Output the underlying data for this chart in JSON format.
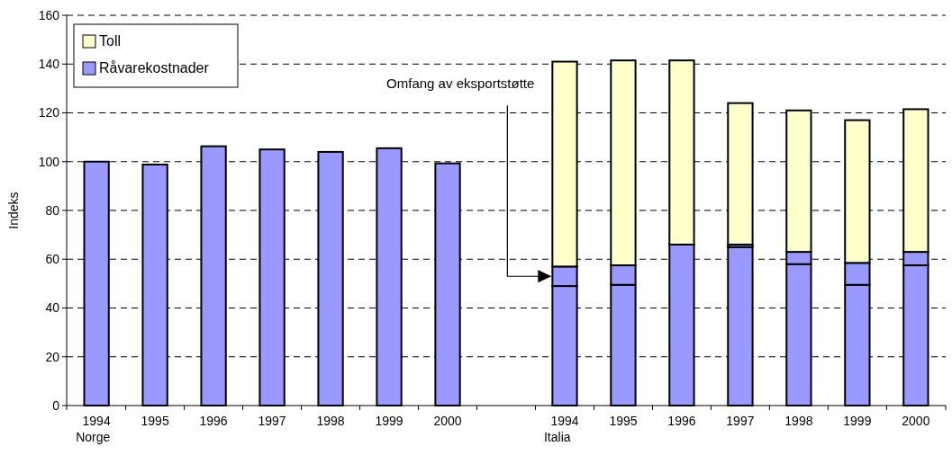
{
  "chart_data": {
    "type": "bar",
    "stacked": true,
    "ylabel": "Indeks",
    "categories": [
      "1994\nNorge",
      "1995",
      "1996",
      "1997",
      "1998",
      "1999",
      "2000",
      null,
      "1994\nItalia",
      "1995",
      "1996",
      "1997",
      "1998",
      "1999",
      "2000"
    ],
    "series": [
      {
        "name": "Råvarekostnader",
        "color": "#9999ff",
        "values": [
          100,
          98.8,
          106.3,
          105,
          104,
          105.5,
          99.3,
          null,
          49,
          49.5,
          66,
          65,
          58,
          49.5,
          57.5
        ]
      },
      {
        "color": "#9999ff",
        "values": [
          null,
          null,
          null,
          null,
          null,
          null,
          null,
          null,
          8,
          8,
          0,
          1,
          5,
          9,
          5.5
        ]
      },
      {
        "name": "Toll",
        "color": "#ffffcc",
        "values": [
          null,
          null,
          null,
          null,
          null,
          null,
          null,
          null,
          84,
          84,
          75.5,
          58,
          58,
          58.5,
          58.5
        ]
      }
    ],
    "ylim": [
      0,
      160
    ],
    "yticks": [
      0,
      20,
      40,
      60,
      80,
      100,
      120,
      140,
      160
    ],
    "grid": "y",
    "legend": "top left",
    "annotations": [
      "Omfang av eksportstøtte"
    ]
  }
}
